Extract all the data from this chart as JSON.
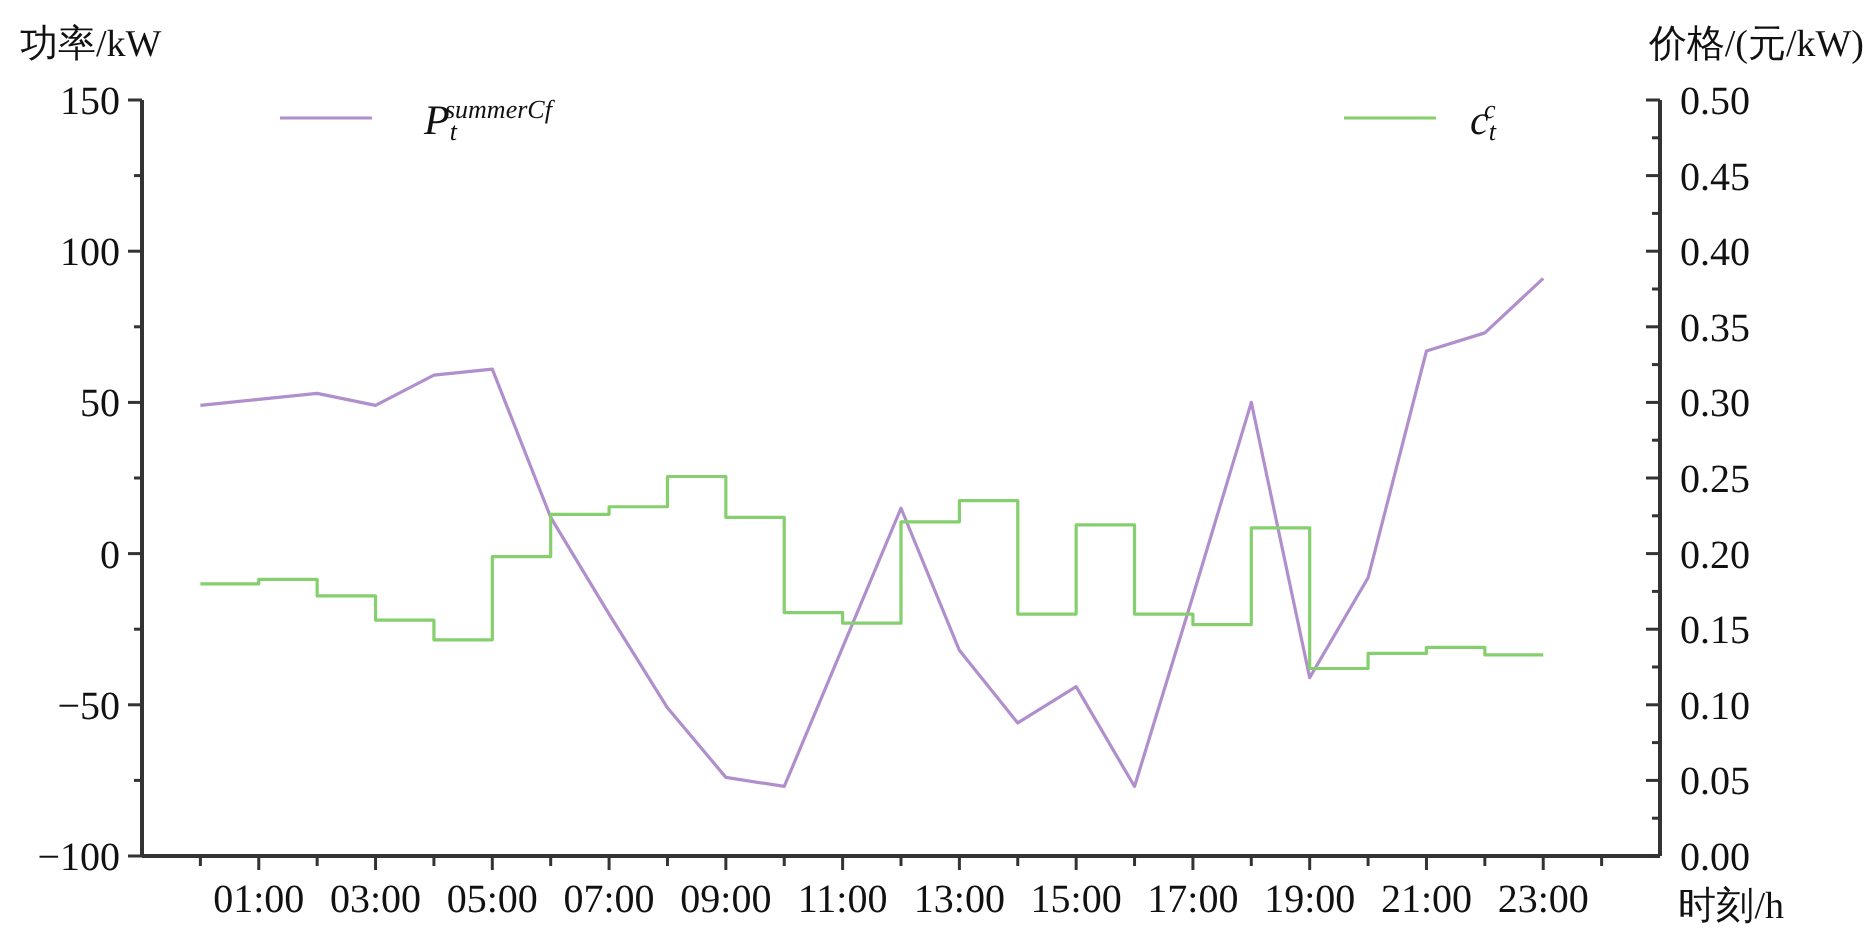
{
  "chart_data": {
    "type": "line",
    "ylabel": "功率/kW",
    "y2label": "价格/(元/kW)",
    "xlabel": "时刻/h",
    "x": [
      0,
      1,
      2,
      3,
      4,
      5,
      6,
      7,
      8,
      9,
      10,
      11,
      12,
      13,
      14,
      15,
      16,
      17,
      18,
      19,
      20,
      21,
      22,
      23
    ],
    "series": [
      {
        "name": "P$_{t}$$^{summerCf}$",
        "color": "#b08fcc",
        "values": [
          49,
          51,
          53,
          49,
          59,
          61,
          12,
          -20,
          -51,
          -74,
          -77,
          -31,
          15,
          -32,
          -56,
          -44,
          -77,
          -14,
          50,
          -41,
          -8,
          67,
          73,
          91
        ]
      },
      {
        "name": "c$_{t}$$^{c}$",
        "type": "step",
        "axis": "y2",
        "color": "#86cf6e",
        "values": [
          0.18,
          0.183,
          0.172,
          0.156,
          0.143,
          0.198,
          0.226,
          0.231,
          0.251,
          0.224,
          0.161,
          0.154,
          0.221,
          0.235,
          0.16,
          0.219,
          0.16,
          0.153,
          0.217,
          0.124,
          0.134,
          0.138,
          0.133,
          0.133
        ]
      }
    ],
    "xlim": [
      -1,
      25
    ],
    "xticks": [
      {
        "value": 0,
        "label": null
      },
      {
        "value": 1,
        "label": "01:00"
      },
      {
        "value": 2,
        "label": null
      },
      {
        "value": 3,
        "label": "03:00"
      },
      {
        "value": 4,
        "label": null
      },
      {
        "value": 5,
        "label": "05:00"
      },
      {
        "value": 6,
        "label": null
      },
      {
        "value": 7,
        "label": "07:00"
      },
      {
        "value": 8,
        "label": null
      },
      {
        "value": 9,
        "label": "09:00"
      },
      {
        "value": 10,
        "label": null
      },
      {
        "value": 11,
        "label": "11:00"
      },
      {
        "value": 12,
        "label": null
      },
      {
        "value": 13,
        "label": "13:00"
      },
      {
        "value": 14,
        "label": null
      },
      {
        "value": 15,
        "label": "15:00"
      },
      {
        "value": 16,
        "label": null
      },
      {
        "value": 17,
        "label": "17:00"
      },
      {
        "value": 18,
        "label": null
      },
      {
        "value": 19,
        "label": "19:00"
      },
      {
        "value": 20,
        "label": null
      },
      {
        "value": 21,
        "label": "21:00"
      },
      {
        "value": 22,
        "label": null
      },
      {
        "value": 23,
        "label": "23:00"
      },
      {
        "value": 24,
        "label": null
      }
    ],
    "ylim": [
      -100,
      150
    ],
    "yticks": [
      -100,
      {
        "value": -75,
        "label": null
      },
      -50,
      {
        "value": -25,
        "label": null
      },
      0,
      {
        "value": 25,
        "label": null
      },
      50,
      {
        "value": 75,
        "label": null
      },
      100,
      {
        "value": 125,
        "label": null
      },
      150
    ],
    "y2lim": [
      0,
      0.5
    ],
    "y2ticks": [
      {
        "value": 0,
        "label": "0.00"
      },
      {
        "value": 0.025,
        "label": null
      },
      {
        "value": 0.05,
        "label": "0.05"
      },
      {
        "value": 0.075,
        "label": null
      },
      {
        "value": 0.1,
        "label": "0.10"
      },
      {
        "value": 0.125,
        "label": null
      },
      {
        "value": 0.15,
        "label": "0.15"
      },
      {
        "value": 0.175,
        "label": null
      },
      {
        "value": 0.2,
        "label": "0.20"
      },
      {
        "value": 0.225,
        "label": null
      },
      {
        "value": 0.25,
        "label": "0.25"
      },
      {
        "value": 0.275,
        "label": null
      },
      {
        "value": 0.3,
        "label": "0.30"
      },
      {
        "value": 0.325,
        "label": null
      },
      {
        "value": 0.35,
        "label": "0.35"
      },
      {
        "value": 0.375,
        "label": null
      },
      {
        "value": 0.4,
        "label": "0.40"
      },
      {
        "value": 0.425,
        "label": null
      },
      {
        "value": 0.45,
        "label": "0.45"
      },
      {
        "value": 0.475,
        "label": null
      },
      {
        "value": 0.5,
        "label": "0.50"
      }
    ],
    "legend": "top",
    "grid": false
  }
}
